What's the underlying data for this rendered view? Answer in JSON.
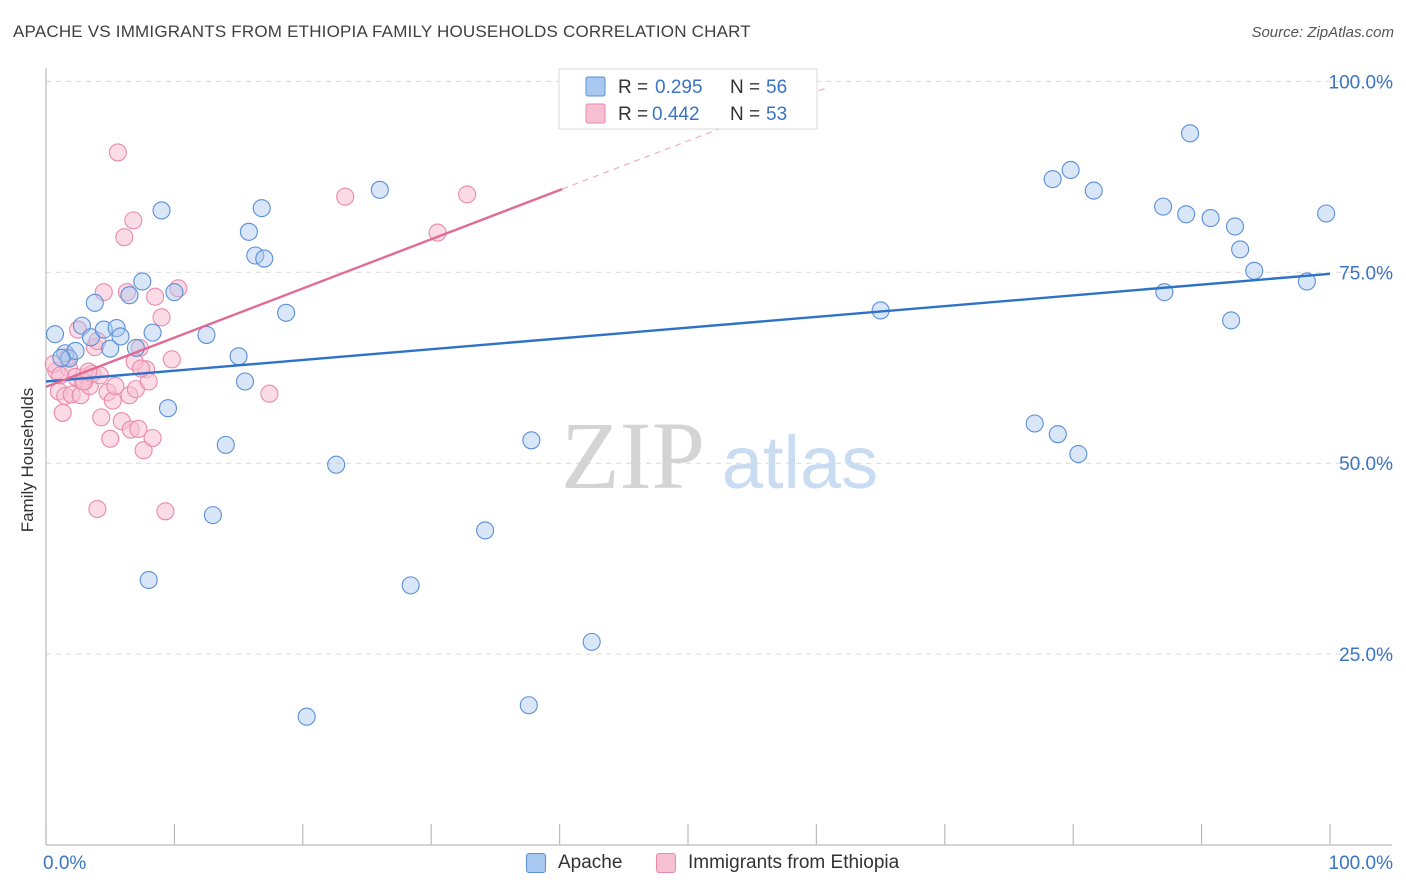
{
  "header": {
    "title": "APACHE VS IMMIGRANTS FROM ETHIOPIA FAMILY HOUSEHOLDS CORRELATION CHART",
    "source": "Source: ZipAtlas.com"
  },
  "watermark": {
    "zip": "ZIP",
    "atlas": "atlas"
  },
  "colors": {
    "apache_fill": "#a9c8ef",
    "apache_stroke": "#5a8fd8",
    "apache_line": "#2e72c8",
    "ethiopia_fill": "#f7bfd2",
    "ethiopia_stroke": "#e98aab",
    "ethiopia_line": "#e06b95",
    "value_text": "#3a74c4",
    "grid": "#d9d9d9"
  },
  "legend": {
    "entries": [
      {
        "series": "Apache",
        "r_label": "R = ",
        "r_value": "0.295",
        "n_label": "N = ",
        "n_value": "56"
      },
      {
        "series": "Immigrants from Ethiopia",
        "r_label": "R = ",
        "r_value": "0.442",
        "n_label": "N = ",
        "n_value": "53"
      }
    ]
  },
  "chart_data": {
    "type": "scatter",
    "title": "APACHE VS IMMIGRANTS FROM ETHIOPIA FAMILY HOUSEHOLDS CORRELATION CHART",
    "xlabel": "",
    "ylabel": "Family Households",
    "xlim": [
      0,
      100
    ],
    "ylim": [
      0,
      105
    ],
    "x_tick_labels": [
      "0.0%",
      "100.0%"
    ],
    "y_ticks": [
      25,
      50,
      75,
      100
    ],
    "y_tick_labels": [
      "25.0%",
      "50.0%",
      "75.0%",
      "100.0%"
    ],
    "grid": true,
    "legend_position": "top-center",
    "series": [
      {
        "name": "Apache",
        "r": 0.295,
        "n": 56,
        "trend": {
          "x0": 0,
          "y0": 60.7,
          "x1": 100,
          "y1": 74.8
        },
        "points": [
          [
            0.7,
            66.9
          ],
          [
            1.5,
            64.4
          ],
          [
            1.8,
            63.7
          ],
          [
            2.3,
            64.7
          ],
          [
            2.8,
            68.0
          ],
          [
            3.5,
            66.5
          ],
          [
            3.8,
            71.0
          ],
          [
            4.5,
            67.5
          ],
          [
            5.0,
            65.0
          ],
          [
            5.5,
            67.7
          ],
          [
            5.8,
            66.6
          ],
          [
            6.5,
            72.0
          ],
          [
            7.0,
            65.1
          ],
          [
            7.5,
            73.8
          ],
          [
            8.0,
            34.7
          ],
          [
            8.3,
            67.1
          ],
          [
            9.0,
            83.1
          ],
          [
            9.5,
            57.2
          ],
          [
            10.0,
            72.4
          ],
          [
            12.5,
            66.8
          ],
          [
            13.0,
            43.2
          ],
          [
            14.0,
            52.4
          ],
          [
            15.0,
            64.0
          ],
          [
            15.5,
            60.7
          ],
          [
            15.8,
            80.3
          ],
          [
            16.3,
            77.2
          ],
          [
            16.8,
            83.4
          ],
          [
            17.0,
            76.8
          ],
          [
            18.7,
            69.7
          ],
          [
            20.3,
            16.8
          ],
          [
            22.6,
            49.8
          ],
          [
            26.0,
            85.8
          ],
          [
            28.4,
            34.0
          ],
          [
            34.2,
            41.2
          ],
          [
            37.6,
            18.3
          ],
          [
            37.8,
            53.0
          ],
          [
            42.5,
            26.6
          ],
          [
            65.0,
            70.0
          ],
          [
            77.0,
            55.2
          ],
          [
            78.4,
            87.2
          ],
          [
            78.8,
            53.8
          ],
          [
            79.8,
            88.4
          ],
          [
            80.4,
            51.2
          ],
          [
            81.6,
            85.7
          ],
          [
            87.0,
            83.6
          ],
          [
            87.1,
            72.4
          ],
          [
            88.8,
            82.6
          ],
          [
            89.1,
            93.2
          ],
          [
            90.7,
            82.1
          ],
          [
            92.3,
            68.7
          ],
          [
            92.6,
            81.0
          ],
          [
            93.0,
            78.0
          ],
          [
            94.1,
            75.2
          ],
          [
            98.2,
            73.8
          ],
          [
            99.7,
            82.7
          ],
          [
            1.2,
            63.8
          ]
        ]
      },
      {
        "name": "Immigrants from Ethiopia",
        "r": 0.442,
        "n": 53,
        "trend": {
          "x0": 0,
          "y0": 60.0,
          "x1": 40.2,
          "y1": 85.9
        },
        "points": [
          [
            0.8,
            62.1
          ],
          [
            1.0,
            59.4
          ],
          [
            1.3,
            56.6
          ],
          [
            1.5,
            58.8
          ],
          [
            1.8,
            62.4
          ],
          [
            2.0,
            59.0
          ],
          [
            2.3,
            61.3
          ],
          [
            2.5,
            67.5
          ],
          [
            2.7,
            58.9
          ],
          [
            3.0,
            60.7
          ],
          [
            3.2,
            61.4
          ],
          [
            3.4,
            60.1
          ],
          [
            3.6,
            61.7
          ],
          [
            3.8,
            65.2
          ],
          [
            4.0,
            66.0
          ],
          [
            4.2,
            61.5
          ],
          [
            4.3,
            56.0
          ],
          [
            4.5,
            72.4
          ],
          [
            4.8,
            59.3
          ],
          [
            5.0,
            53.2
          ],
          [
            5.2,
            58.2
          ],
          [
            5.6,
            90.7
          ],
          [
            5.9,
            55.5
          ],
          [
            6.1,
            79.6
          ],
          [
            6.3,
            72.4
          ],
          [
            6.5,
            58.9
          ],
          [
            6.6,
            54.4
          ],
          [
            6.8,
            81.8
          ],
          [
            7.0,
            59.7
          ],
          [
            7.2,
            54.5
          ],
          [
            7.3,
            65.1
          ],
          [
            7.6,
            51.7
          ],
          [
            7.8,
            62.3
          ],
          [
            8.0,
            60.7
          ],
          [
            8.3,
            53.3
          ],
          [
            8.5,
            71.8
          ],
          [
            9.0,
            69.1
          ],
          [
            9.3,
            43.7
          ],
          [
            9.8,
            63.6
          ],
          [
            10.3,
            72.9
          ],
          [
            17.4,
            59.1
          ],
          [
            23.3,
            84.9
          ],
          [
            30.5,
            80.2
          ],
          [
            32.8,
            85.2
          ],
          [
            0.6,
            63.0
          ],
          [
            1.7,
            63.9
          ],
          [
            2.9,
            60.7
          ],
          [
            3.3,
            62.0
          ],
          [
            4.0,
            44.0
          ],
          [
            5.4,
            60.1
          ],
          [
            6.9,
            63.3
          ],
          [
            7.4,
            62.4
          ],
          [
            1.1,
            61.5
          ]
        ]
      }
    ]
  }
}
